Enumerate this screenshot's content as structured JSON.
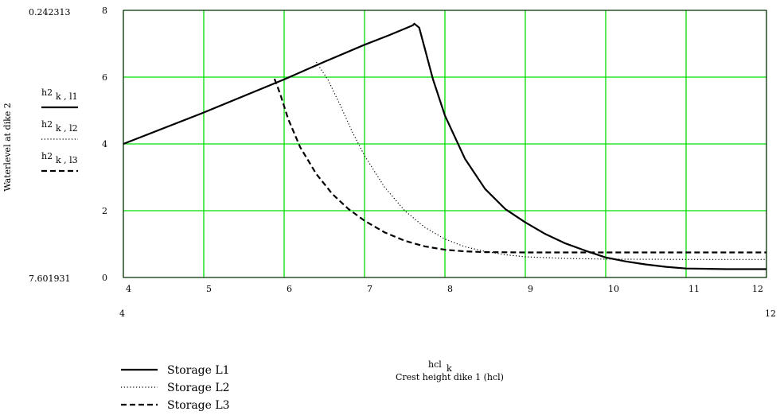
{
  "chart_data": {
    "type": "line",
    "xlabel_top": "hcl",
    "xlabel_top_sub": "k",
    "xlabel": "Crest height dike 1 (hcl)",
    "ylabel": "Waterlevel at dike 2",
    "xlim": [
      4,
      12
    ],
    "ylim": [
      0,
      8
    ],
    "x_ticks": [
      "4",
      "5",
      "6",
      "7",
      "8",
      "9",
      "10",
      "11",
      "12"
    ],
    "y_ticks": [
      "0",
      "2",
      "4",
      "6",
      "8"
    ],
    "x_range_labels": [
      "4",
      "12"
    ],
    "y_range_labels": [
      "7.601931",
      "0.242313"
    ],
    "grid": true,
    "grid_color": "#00dd00",
    "series": [
      {
        "name": "Storage L1",
        "trace_label": "h2",
        "trace_sub": "k , l1",
        "style": "solid",
        "points": [
          [
            4.0,
            4.0
          ],
          [
            5.0,
            4.94
          ],
          [
            6.0,
            5.93
          ],
          [
            6.5,
            6.46
          ],
          [
            7.0,
            6.97
          ],
          [
            7.3,
            7.25
          ],
          [
            7.5,
            7.45
          ],
          [
            7.6,
            7.55
          ],
          [
            7.62,
            7.6
          ],
          [
            7.68,
            7.48
          ],
          [
            7.75,
            6.85
          ],
          [
            7.85,
            5.95
          ],
          [
            8.0,
            4.85
          ],
          [
            8.25,
            3.55
          ],
          [
            8.5,
            2.65
          ],
          [
            8.75,
            2.05
          ],
          [
            9.0,
            1.65
          ],
          [
            9.25,
            1.3
          ],
          [
            9.5,
            1.02
          ],
          [
            9.75,
            0.8
          ],
          [
            10.0,
            0.6
          ],
          [
            10.25,
            0.48
          ],
          [
            10.5,
            0.39
          ],
          [
            10.75,
            0.32
          ],
          [
            11.0,
            0.27
          ],
          [
            11.5,
            0.25
          ],
          [
            12.0,
            0.25
          ]
        ]
      },
      {
        "name": "Storage L2",
        "trace_label": "h2",
        "trace_sub": "k , l2",
        "style": "dotted",
        "points": [
          [
            6.4,
            6.45
          ],
          [
            6.55,
            5.9
          ],
          [
            6.7,
            5.15
          ],
          [
            6.85,
            4.35
          ],
          [
            7.0,
            3.65
          ],
          [
            7.25,
            2.7
          ],
          [
            7.5,
            2.0
          ],
          [
            7.75,
            1.5
          ],
          [
            8.0,
            1.15
          ],
          [
            8.25,
            0.92
          ],
          [
            8.5,
            0.78
          ],
          [
            8.75,
            0.68
          ],
          [
            9.0,
            0.62
          ],
          [
            9.5,
            0.57
          ],
          [
            10.0,
            0.55
          ],
          [
            11.0,
            0.54
          ],
          [
            12.0,
            0.54
          ]
        ]
      },
      {
        "name": "Storage L3",
        "trace_label": "h2",
        "trace_sub": "k , l3",
        "style": "dashed",
        "points": [
          [
            5.88,
            5.95
          ],
          [
            5.95,
            5.5
          ],
          [
            6.05,
            4.75
          ],
          [
            6.2,
            3.9
          ],
          [
            6.4,
            3.1
          ],
          [
            6.6,
            2.5
          ],
          [
            6.8,
            2.05
          ],
          [
            7.0,
            1.7
          ],
          [
            7.25,
            1.35
          ],
          [
            7.5,
            1.1
          ],
          [
            7.75,
            0.93
          ],
          [
            8.0,
            0.83
          ],
          [
            8.25,
            0.78
          ],
          [
            8.5,
            0.76
          ],
          [
            9.0,
            0.75
          ],
          [
            10.0,
            0.75
          ],
          [
            11.0,
            0.75
          ],
          [
            12.0,
            0.75
          ]
        ]
      }
    ]
  }
}
